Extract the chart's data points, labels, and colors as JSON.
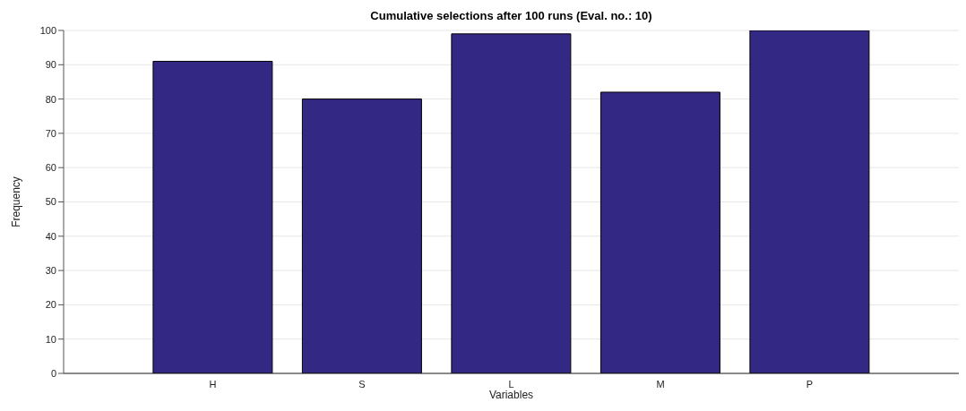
{
  "chart_data": {
    "type": "bar",
    "title": "Cumulative selections after 100 runs (Eval. no.: 10)",
    "xlabel": "Variables",
    "ylabel": "Frequency",
    "categories": [
      "H",
      "S",
      "L",
      "M",
      "P"
    ],
    "values": [
      91,
      80,
      99,
      82,
      100
    ],
    "color": "#332883",
    "ylim": [
      0,
      100
    ],
    "yticks": [
      0,
      10,
      20,
      30,
      40,
      50,
      60,
      70,
      80,
      90,
      100
    ],
    "grid": "y"
  }
}
